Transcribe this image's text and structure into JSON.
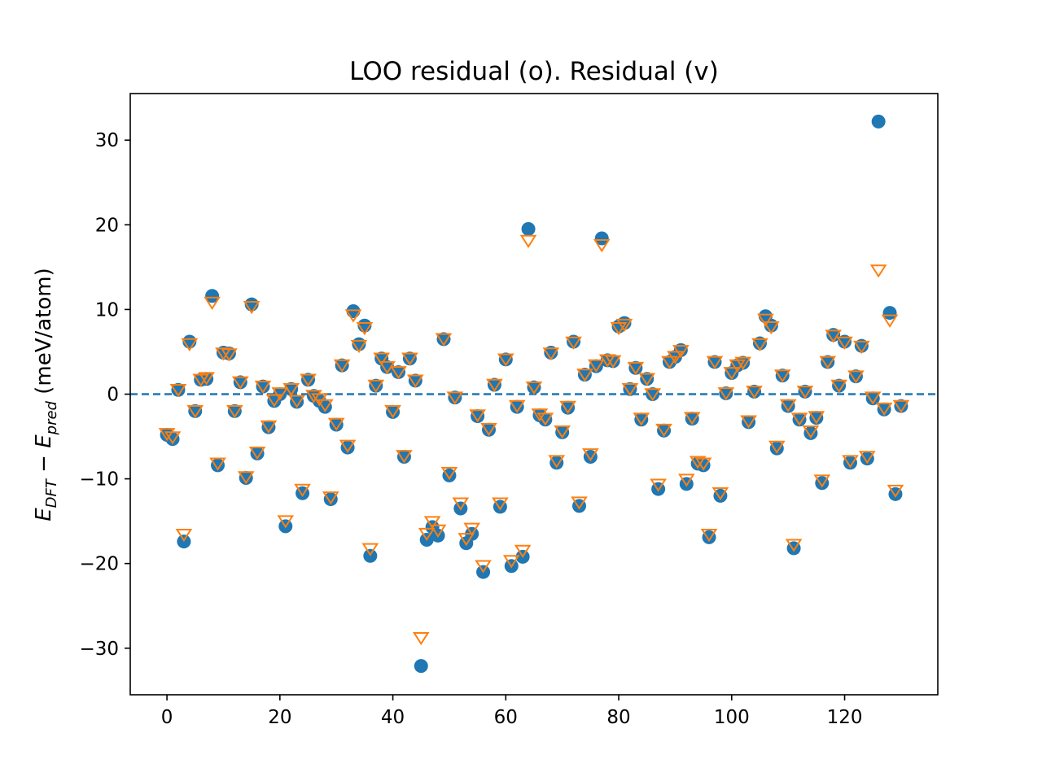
{
  "chart_data": {
    "type": "scatter",
    "title": "LOO residual (o). Residual (v)",
    "ylabel": {
      "main_E": "E",
      "sub_dft": "DFT",
      "minus": " − ",
      "main_E2": "E",
      "sub_pred": "pred",
      "unit": " (meV/atom)"
    },
    "xlabel": "",
    "xlim": [
      -6.5,
      136.5
    ],
    "ylim": [
      -35.5,
      35.5
    ],
    "xticks": [
      0,
      20,
      40,
      60,
      80,
      100,
      120
    ],
    "xtick_labels": [
      "0",
      "20",
      "40",
      "60",
      "80",
      "100",
      "120"
    ],
    "yticks": [
      -30,
      -20,
      -10,
      0,
      10,
      20,
      30
    ],
    "ytick_labels": [
      "−30",
      "−20",
      "−10",
      "0",
      "10",
      "20",
      "30"
    ],
    "reference_line": {
      "y": 0,
      "style": "dashed",
      "color": "#1f77b4"
    },
    "grid": false,
    "series": [
      {
        "marker": "circle",
        "color": "#1f77b4",
        "x": [
          0,
          1,
          2,
          3,
          4,
          5,
          6,
          7,
          8,
          9,
          10,
          11,
          12,
          13,
          14,
          15,
          16,
          17,
          18,
          19,
          20,
          21,
          22,
          23,
          24,
          25,
          26,
          27,
          28,
          29,
          30,
          31,
          32,
          33,
          34,
          35,
          36,
          37,
          38,
          39,
          40,
          41,
          42,
          43,
          44,
          45,
          46,
          47,
          48,
          49,
          50,
          51,
          52,
          53,
          54,
          55,
          56,
          57,
          58,
          59,
          60,
          61,
          62,
          63,
          64,
          65,
          66,
          67,
          68,
          69,
          70,
          71,
          72,
          73,
          74,
          75,
          76,
          77,
          78,
          79,
          80,
          81,
          82,
          83,
          84,
          85,
          86,
          87,
          88,
          89,
          90,
          91,
          92,
          93,
          94,
          95,
          96,
          97,
          98,
          99,
          100,
          101,
          102,
          103,
          104,
          105,
          106,
          107,
          108,
          109,
          110,
          111,
          112,
          113,
          114,
          115,
          116,
          117,
          118,
          119,
          120,
          121,
          122,
          123,
          124,
          125,
          126,
          127,
          128,
          129,
          130
        ],
        "values": [
          -4.8,
          -5.3,
          0.5,
          -17.4,
          6.2,
          -2.0,
          1.7,
          1.8,
          11.6,
          -8.4,
          4.9,
          4.8,
          -2.0,
          1.4,
          -9.9,
          10.6,
          -7.0,
          0.9,
          -3.9,
          -0.8,
          0.0,
          -15.6,
          0.6,
          -0.9,
          -11.7,
          1.7,
          -0.2,
          -0.8,
          -1.5,
          -12.4,
          -3.6,
          3.4,
          -6.3,
          9.8,
          5.9,
          8.1,
          -19.1,
          1.0,
          4.2,
          3.2,
          -2.1,
          2.6,
          -7.4,
          4.2,
          1.6,
          -32.1,
          -17.2,
          -15.7,
          -16.7,
          6.5,
          -9.6,
          -0.4,
          -13.5,
          -17.6,
          -16.5,
          -2.6,
          -21.0,
          -4.2,
          1.1,
          -13.3,
          4.1,
          -20.3,
          -1.5,
          -19.2,
          19.5,
          0.8,
          -2.5,
          -3.0,
          4.9,
          -8.1,
          -4.5,
          -1.6,
          6.2,
          -13.2,
          2.3,
          -7.4,
          3.3,
          18.4,
          4.0,
          3.9,
          8.0,
          8.4,
          0.6,
          3.1,
          -3.0,
          1.8,
          0.0,
          -11.2,
          -4.3,
          3.8,
          4.4,
          5.2,
          -10.6,
          -2.9,
          -8.2,
          -8.4,
          -16.9,
          3.8,
          -12.0,
          0.1,
          2.5,
          3.4,
          3.7,
          -3.3,
          0.3,
          6.0,
          9.2,
          8.1,
          -6.4,
          2.2,
          -1.4,
          -18.2,
          -3.0,
          0.3,
          -4.6,
          -2.8,
          -10.5,
          3.8,
          7.0,
          1.0,
          6.2,
          -8.1,
          2.1,
          5.7,
          -7.6,
          -0.5,
          32.2,
          -1.8,
          9.6,
          -11.8,
          -1.4
        ]
      },
      {
        "marker": "triangle_down_open",
        "color": "#ff7f0e",
        "x": [
          0,
          1,
          2,
          3,
          4,
          5,
          6,
          7,
          8,
          9,
          10,
          11,
          12,
          13,
          14,
          15,
          16,
          17,
          18,
          19,
          20,
          21,
          22,
          23,
          24,
          25,
          26,
          27,
          28,
          29,
          30,
          31,
          32,
          33,
          34,
          35,
          36,
          37,
          38,
          39,
          40,
          41,
          42,
          43,
          44,
          45,
          46,
          47,
          48,
          49,
          50,
          51,
          52,
          53,
          54,
          55,
          56,
          57,
          58,
          59,
          60,
          61,
          62,
          63,
          64,
          65,
          66,
          67,
          68,
          69,
          70,
          71,
          72,
          73,
          74,
          75,
          76,
          77,
          78,
          79,
          80,
          81,
          82,
          83,
          84,
          85,
          86,
          87,
          88,
          89,
          90,
          91,
          92,
          93,
          94,
          95,
          96,
          97,
          98,
          99,
          100,
          101,
          102,
          103,
          104,
          105,
          106,
          107,
          108,
          109,
          110,
          111,
          112,
          113,
          114,
          115,
          116,
          117,
          118,
          119,
          120,
          121,
          122,
          123,
          124,
          125,
          126,
          127,
          128,
          129,
          130
        ],
        "values": [
          -4.6,
          -5.0,
          0.6,
          -16.5,
          6.0,
          -1.9,
          1.8,
          2.0,
          10.9,
          -8.1,
          4.9,
          4.8,
          -1.9,
          1.5,
          -9.7,
          10.4,
          -6.8,
          1.0,
          -3.7,
          -0.6,
          0.2,
          -14.9,
          0.7,
          -0.7,
          -11.2,
          1.8,
          -0.1,
          -0.5,
          -1.2,
          -12.1,
          -3.4,
          3.5,
          -6.0,
          9.4,
          5.8,
          7.9,
          -18.2,
          1.1,
          4.3,
          3.3,
          -1.9,
          2.7,
          -7.2,
          4.3,
          1.7,
          -28.7,
          -16.4,
          -15.0,
          -16.0,
          6.6,
          -9.2,
          -0.3,
          -12.8,
          -17.0,
          -15.8,
          -2.4,
          -20.2,
          -4.0,
          1.2,
          -12.8,
          4.2,
          -19.6,
          -1.3,
          -18.4,
          18.2,
          0.9,
          -2.3,
          -2.8,
          4.9,
          -7.8,
          -4.3,
          -1.4,
          6.2,
          -12.7,
          2.4,
          -7.0,
          3.5,
          17.7,
          4.1,
          4.0,
          7.9,
          8.3,
          0.7,
          3.2,
          -2.8,
          1.9,
          0.1,
          -10.6,
          -4.1,
          3.9,
          4.5,
          5.2,
          -10.0,
          -2.7,
          -7.9,
          -8.1,
          -16.5,
          3.9,
          -11.6,
          0.2,
          2.6,
          3.5,
          3.8,
          -3.1,
          0.4,
          6.0,
          8.9,
          8.0,
          -6.1,
          2.3,
          -1.2,
          -17.7,
          -2.8,
          0.4,
          -4.3,
          -2.6,
          -10.1,
          3.9,
          7.0,
          1.1,
          6.2,
          -7.8,
          2.2,
          5.7,
          -7.3,
          -0.3,
          14.7,
          -1.6,
          8.8,
          -11.3,
          -1.3
        ]
      }
    ]
  }
}
